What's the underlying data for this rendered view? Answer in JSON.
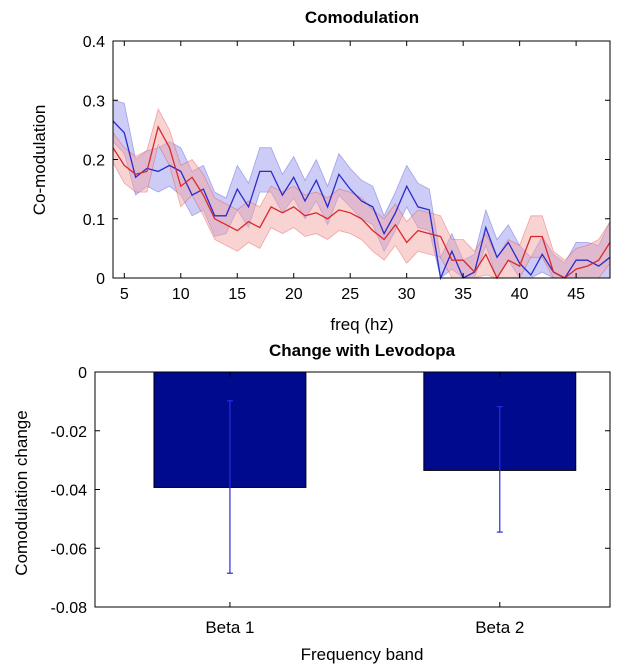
{
  "chart_data": [
    {
      "type": "line",
      "title": "Comodulation",
      "xlabel": "freq (hz)",
      "ylabel": "Co-modulation",
      "xlim": [
        4,
        48
      ],
      "ylim": [
        0,
        0.4
      ],
      "xticks": [
        "5",
        "10",
        "15",
        "20",
        "25",
        "30",
        "35",
        "40",
        "45"
      ],
      "yticks": [
        "0",
        "0.1",
        "0.2",
        "0.3",
        "0.4"
      ],
      "x": [
        4,
        5,
        6,
        7,
        8,
        9,
        10,
        11,
        12,
        13,
        14,
        15,
        16,
        17,
        18,
        19,
        20,
        21,
        22,
        23,
        24,
        25,
        26,
        27,
        28,
        29,
        30,
        31,
        32,
        33,
        34,
        35,
        36,
        37,
        38,
        39,
        40,
        41,
        42,
        43,
        44,
        45,
        46,
        47,
        48
      ],
      "series": [
        {
          "color": "#2b2bcc",
          "band_color": "#9a9af0",
          "values": [
            0.265,
            0.245,
            0.17,
            0.185,
            0.18,
            0.19,
            0.18,
            0.14,
            0.15,
            0.105,
            0.105,
            0.15,
            0.12,
            0.18,
            0.18,
            0.14,
            0.17,
            0.13,
            0.165,
            0.12,
            0.175,
            0.15,
            0.13,
            0.12,
            0.075,
            0.11,
            0.155,
            0.12,
            0.115,
            0.0,
            0.045,
            0.0,
            0.01,
            0.085,
            0.035,
            0.06,
            0.025,
            0.005,
            0.04,
            0.01,
            0.0,
            0.03,
            0.03,
            0.02,
            0.035
          ],
          "upper": [
            0.3,
            0.295,
            0.2,
            0.215,
            0.22,
            0.23,
            0.22,
            0.18,
            0.19,
            0.145,
            0.135,
            0.19,
            0.16,
            0.22,
            0.22,
            0.175,
            0.205,
            0.165,
            0.2,
            0.155,
            0.21,
            0.185,
            0.165,
            0.155,
            0.105,
            0.145,
            0.19,
            0.16,
            0.15,
            0.035,
            0.075,
            0.03,
            0.04,
            0.115,
            0.065,
            0.09,
            0.055,
            0.035,
            0.07,
            0.04,
            0.025,
            0.06,
            0.06,
            0.055,
            0.095
          ],
          "lower": [
            0.23,
            0.21,
            0.14,
            0.155,
            0.145,
            0.155,
            0.14,
            0.105,
            0.115,
            0.07,
            0.075,
            0.115,
            0.085,
            0.145,
            0.145,
            0.11,
            0.135,
            0.1,
            0.13,
            0.09,
            0.14,
            0.12,
            0.1,
            0.09,
            0.045,
            0.08,
            0.12,
            0.085,
            0.08,
            0.0,
            0.015,
            0.0,
            0.0,
            0.055,
            0.0,
            0.03,
            0.0,
            0.0,
            0.01,
            0.0,
            0.0,
            0.0,
            0.0,
            0.0,
            0.0
          ]
        },
        {
          "color": "#d82a2a",
          "band_color": "#f4a6a6",
          "values": [
            0.22,
            0.19,
            0.175,
            0.18,
            0.255,
            0.22,
            0.155,
            0.17,
            0.14,
            0.1,
            0.09,
            0.08,
            0.095,
            0.085,
            0.12,
            0.11,
            0.12,
            0.105,
            0.11,
            0.1,
            0.115,
            0.11,
            0.1,
            0.08,
            0.065,
            0.09,
            0.06,
            0.08,
            0.075,
            0.07,
            0.03,
            0.03,
            0.01,
            0.04,
            0.0,
            0.03,
            0.02,
            0.07,
            0.07,
            0.01,
            0.0,
            0.015,
            0.02,
            0.03,
            0.06
          ],
          "upper": [
            0.245,
            0.22,
            0.205,
            0.215,
            0.285,
            0.25,
            0.19,
            0.2,
            0.175,
            0.135,
            0.125,
            0.115,
            0.13,
            0.12,
            0.155,
            0.145,
            0.155,
            0.14,
            0.145,
            0.135,
            0.15,
            0.145,
            0.135,
            0.115,
            0.1,
            0.125,
            0.095,
            0.115,
            0.11,
            0.105,
            0.065,
            0.065,
            0.045,
            0.075,
            0.035,
            0.065,
            0.055,
            0.105,
            0.105,
            0.045,
            0.03,
            0.05,
            0.055,
            0.065,
            0.095
          ],
          "lower": [
            0.195,
            0.16,
            0.145,
            0.145,
            0.225,
            0.19,
            0.12,
            0.14,
            0.105,
            0.065,
            0.055,
            0.045,
            0.06,
            0.05,
            0.085,
            0.075,
            0.085,
            0.07,
            0.075,
            0.065,
            0.08,
            0.075,
            0.065,
            0.045,
            0.03,
            0.055,
            0.025,
            0.045,
            0.04,
            0.035,
            0.0,
            0.0,
            0.0,
            0.005,
            0.0,
            0.0,
            0.0,
            0.035,
            0.035,
            0.0,
            0.0,
            0.0,
            0.0,
            0.0,
            0.025
          ]
        }
      ],
      "grid": false
    },
    {
      "type": "bar",
      "title": "Change with Levodopa",
      "xlabel": "Frequency band",
      "ylabel": "Comodulation change",
      "categories": [
        "Beta 1",
        "Beta 2"
      ],
      "values": [
        -0.0393,
        -0.0335
      ],
      "error_low": [
        -0.0685,
        -0.0545
      ],
      "error_high": [
        -0.0098,
        -0.0118
      ],
      "ylim": [
        -0.08,
        0
      ],
      "yticks": [
        "0",
        "-0.02",
        "-0.04",
        "-0.06",
        "-0.08"
      ],
      "bar_color": "#000a8c",
      "error_color": "#2a2ae0",
      "grid": false
    }
  ]
}
